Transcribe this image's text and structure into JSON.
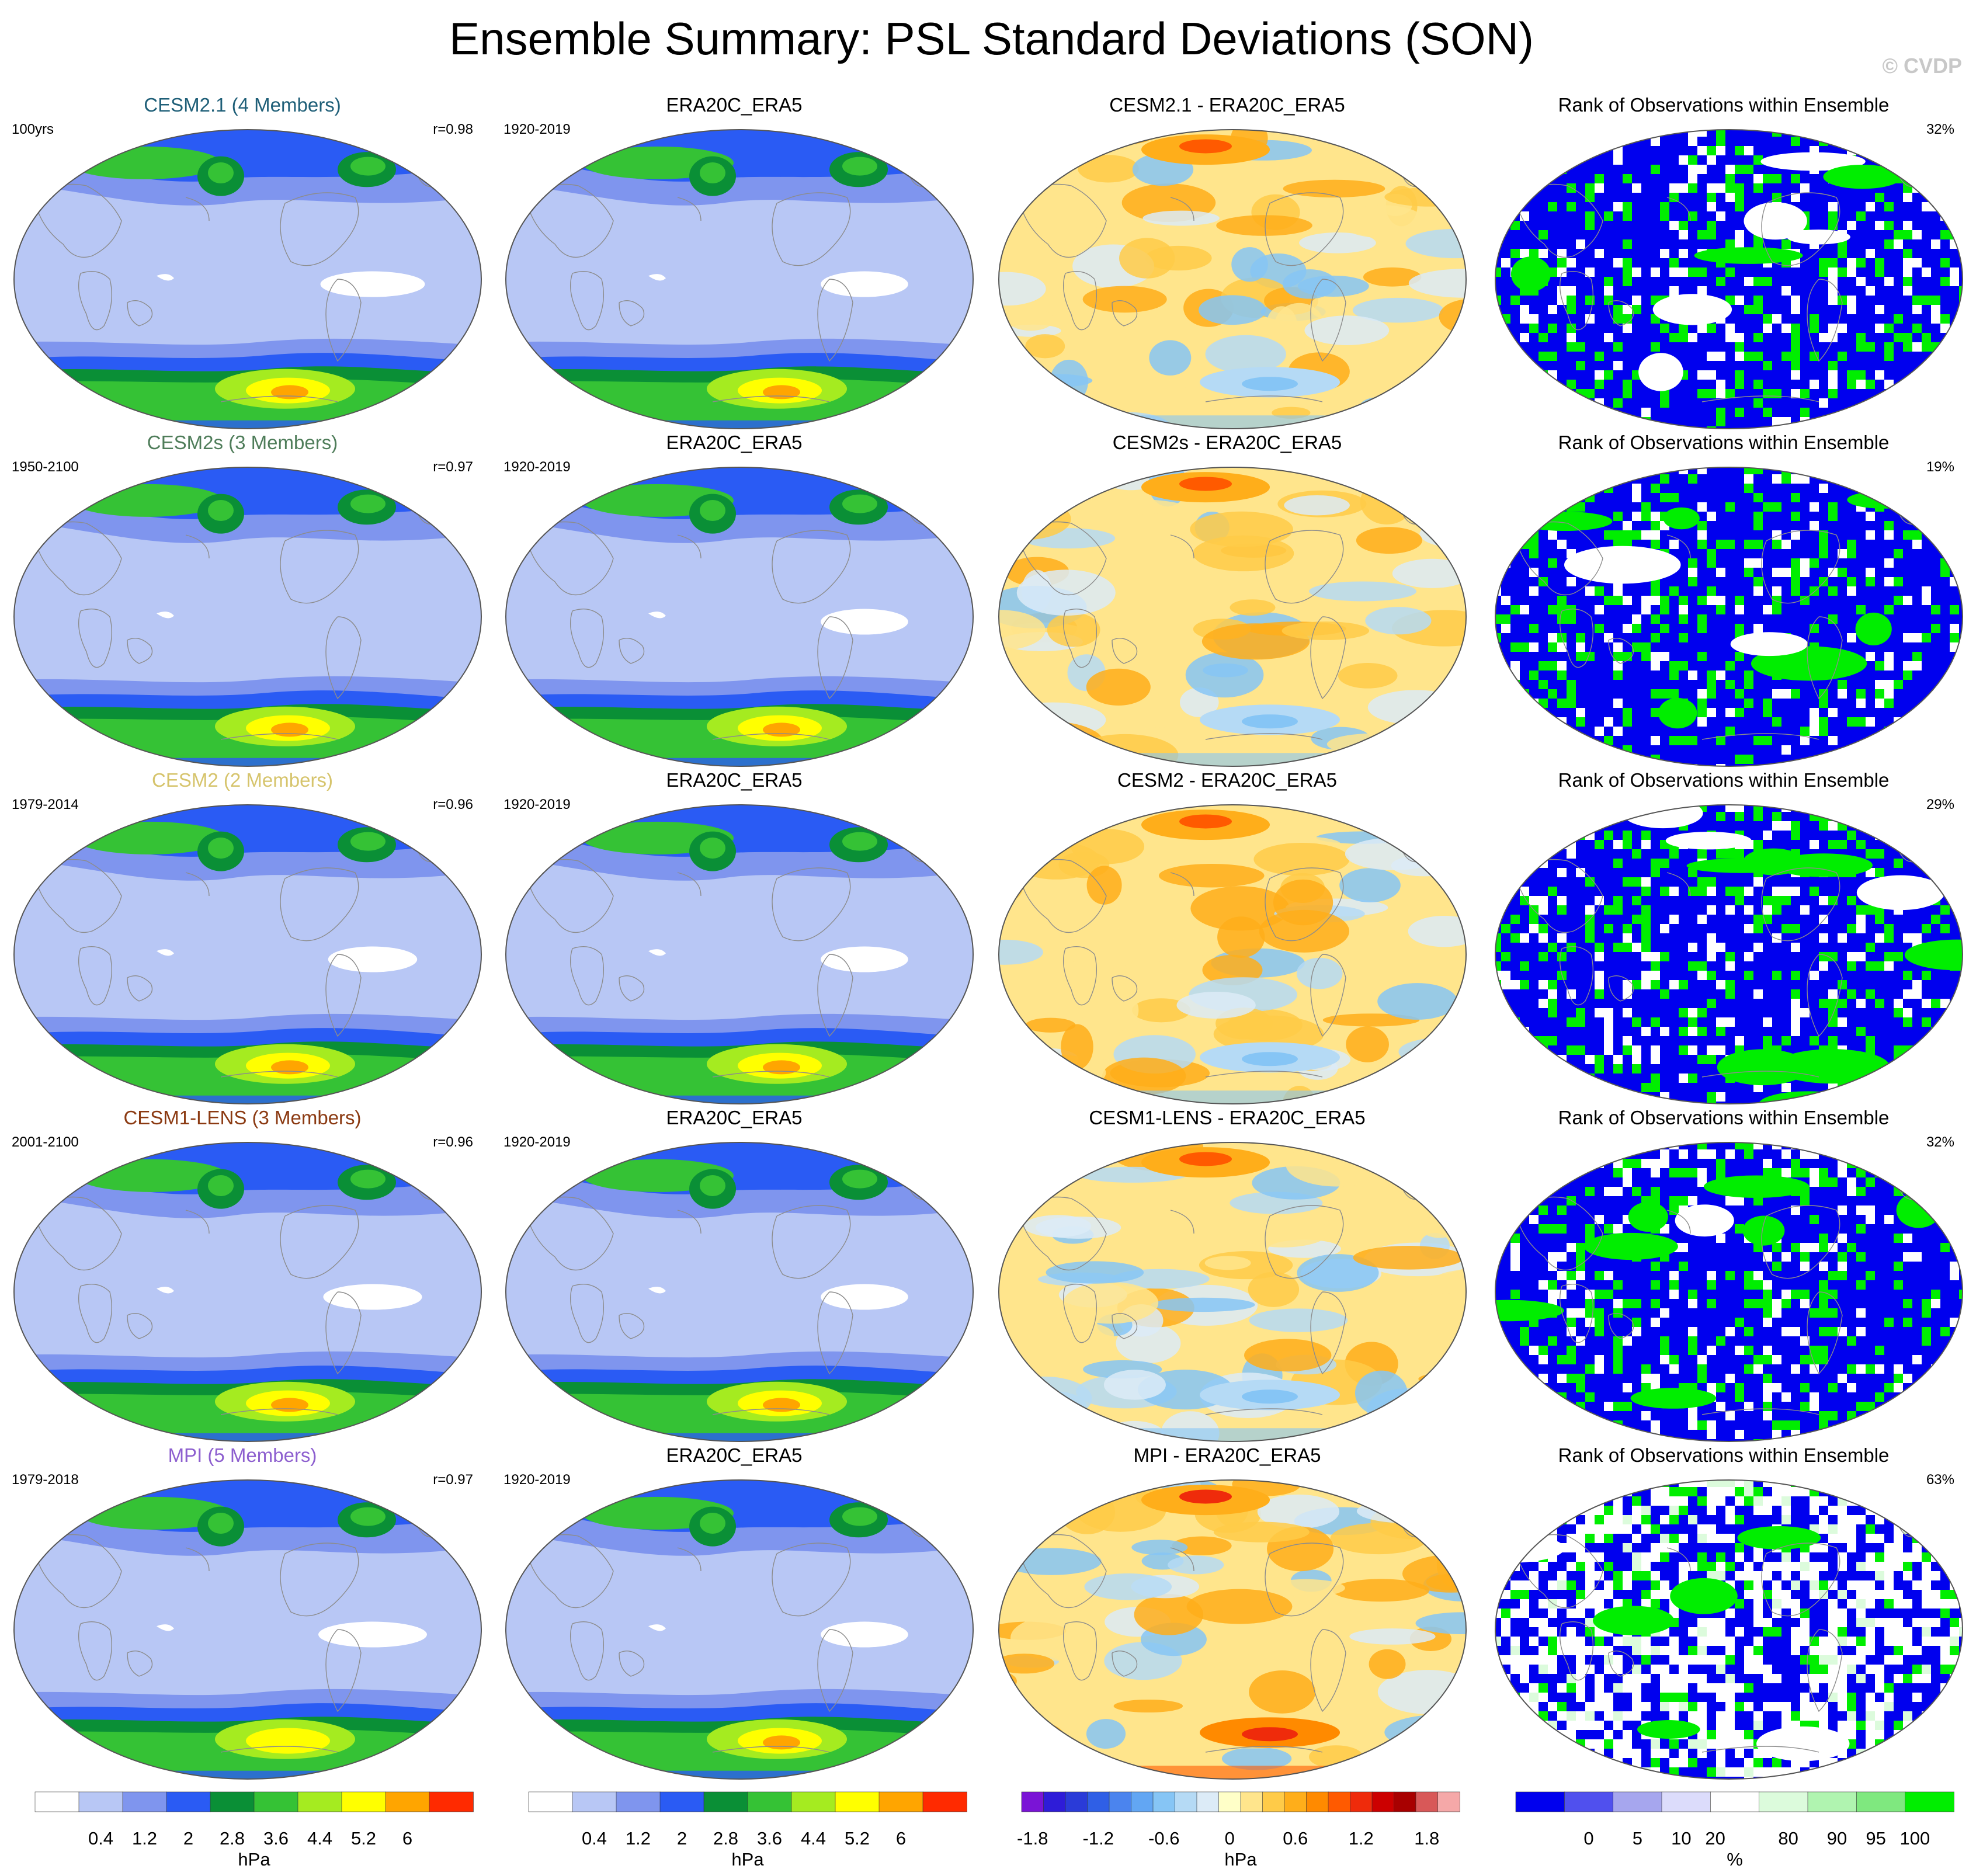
{
  "title": "Ensemble Summary: PSL Standard Deviations (SON)",
  "logo": "© CVDP",
  "colors": {
    "sd": [
      "#ffffff",
      "#b8c7f5",
      "#7f95ee",
      "#2a5bf4",
      "#0a8f36",
      "#35c235",
      "#a5eb20",
      "#ffff00",
      "#ffa500",
      "#ff2a00"
    ],
    "diff": [
      "#7a14d6",
      "#2e1cd8",
      "#2a3bd8",
      "#2f5fe6",
      "#4b84ee",
      "#62a6f3",
      "#86c5f5",
      "#b5daf5",
      "#dcebf7",
      "#ffffc8",
      "#ffe58c",
      "#ffcb48",
      "#ffae1a",
      "#ff8a00",
      "#ff5a00",
      "#ef2b0b",
      "#cc0000",
      "#a80000",
      "#d85858",
      "#f5a8a8"
    ],
    "rank": [
      "#0000ee",
      "#5050ee",
      "#a6a6ee",
      "#dcdcfb",
      "#ffffff",
      "#dcfbdc",
      "#b0f4b0",
      "#7fe87f",
      "#00ee00"
    ]
  },
  "rows": [
    {
      "model": {
        "title": "CESM2.1 (4 Members)",
        "title_color": "#1f5f78",
        "left": "100yrs",
        "right": "r=0.98"
      },
      "obs": {
        "title": "ERA20C_ERA5",
        "left": "1920-2019"
      },
      "diff": {
        "title": "CESM2.1 - ERA20C_ERA5"
      },
      "rank": {
        "title": "Rank of Observations within Ensemble",
        "right": "32%"
      }
    },
    {
      "model": {
        "title": "CESM2s (3 Members)",
        "title_color": "#4f7d5a",
        "left": "1950-2100",
        "right": "r=0.97"
      },
      "obs": {
        "title": "ERA20C_ERA5",
        "left": "1920-2019"
      },
      "diff": {
        "title": "CESM2s - ERA20C_ERA5"
      },
      "rank": {
        "title": "Rank of Observations within Ensemble",
        "right": "19%"
      }
    },
    {
      "model": {
        "title": "CESM2 (2 Members)",
        "title_color": "#d6c46c",
        "left": "1979-2014",
        "right": "r=0.96"
      },
      "obs": {
        "title": "ERA20C_ERA5",
        "left": "1920-2019"
      },
      "diff": {
        "title": "CESM2 - ERA20C_ERA5"
      },
      "rank": {
        "title": "Rank of Observations within Ensemble",
        "right": "29%"
      }
    },
    {
      "model": {
        "title": "CESM1-LENS (3 Members)",
        "title_color": "#8b3a12",
        "left": "2001-2100",
        "right": "r=0.96"
      },
      "obs": {
        "title": "ERA20C_ERA5",
        "left": "1920-2019"
      },
      "diff": {
        "title": "CESM1-LENS - ERA20C_ERA5"
      },
      "rank": {
        "title": "Rank of Observations within Ensemble",
        "right": "32%"
      }
    },
    {
      "model": {
        "title": "MPI (5 Members)",
        "title_color": "#8d5fcf",
        "left": "1979-2018",
        "right": "r=0.97"
      },
      "obs": {
        "title": "ERA20C_ERA5",
        "left": "1920-2019"
      },
      "diff": {
        "title": "MPI - ERA20C_ERA5"
      },
      "rank": {
        "title": "Rank of Observations within Ensemble",
        "right": "63%"
      }
    }
  ],
  "colorbars": [
    {
      "labels": [
        "0.4",
        "1.2",
        "2",
        "2.8",
        "3.6",
        "4.4",
        "5.2",
        "6"
      ],
      "unit": "hPa"
    },
    {
      "labels": [
        "0.4",
        "1.2",
        "2",
        "2.8",
        "3.6",
        "4.4",
        "5.2",
        "6"
      ],
      "unit": "hPa"
    },
    {
      "labels": [
        "-1.8",
        "-1.2",
        "-0.6",
        "0",
        "0.6",
        "1.2",
        "1.8"
      ],
      "unit": "hPa"
    },
    {
      "labels": [
        "0",
        "5",
        "10",
        "20",
        "80",
        "90",
        "95",
        "100"
      ],
      "unit": "%"
    }
  ],
  "chart_data": {
    "type": "heatmap",
    "title": "Ensemble Summary: PSL Standard Deviations (SON)",
    "projection": "global, elliptical",
    "season": "SON",
    "panels_per_row": [
      "model ensemble-mean PSL standard deviation",
      "observed PSL standard deviation",
      "difference (model minus observations)",
      "rank of observations within ensemble"
    ],
    "rows": [
      {
        "model": "CESM2.1 (4 Members)",
        "period": "100yrs",
        "pattern_correlation": 0.98,
        "obs_rank_pct": 32
      },
      {
        "model": "CESM2s (3 Members)",
        "period": "1950-2100",
        "pattern_correlation": 0.97,
        "obs_rank_pct": 19
      },
      {
        "model": "CESM2 (2 Members)",
        "period": "1979-2014",
        "pattern_correlation": 0.96,
        "obs_rank_pct": 29
      },
      {
        "model": "CESM1-LENS (3 Members)",
        "period": "2001-2100",
        "pattern_correlation": 0.96,
        "obs_rank_pct": 32
      },
      {
        "model": "MPI (5 Members)",
        "period": "1979-2018",
        "pattern_correlation": 0.97,
        "obs_rank_pct": 63
      }
    ],
    "observations": {
      "name": "ERA20C_ERA5",
      "period": "1920-2019"
    },
    "sd_levels_hPa": [
      0.4,
      0.8,
      1.2,
      1.6,
      2,
      2.4,
      2.8,
      3.2,
      3.6,
      4,
      4.4,
      4.8,
      5.2,
      5.6,
      6
    ],
    "diff_levels_hPa": [
      -1.8,
      -1.6,
      -1.4,
      -1.2,
      -1,
      -0.8,
      -0.6,
      -0.4,
      -0.2,
      0,
      0.2,
      0.4,
      0.6,
      0.8,
      1,
      1.2,
      1.4,
      1.6,
      1.8
    ],
    "rank_levels_pct": [
      0,
      5,
      10,
      20,
      80,
      90,
      95,
      100
    ]
  }
}
